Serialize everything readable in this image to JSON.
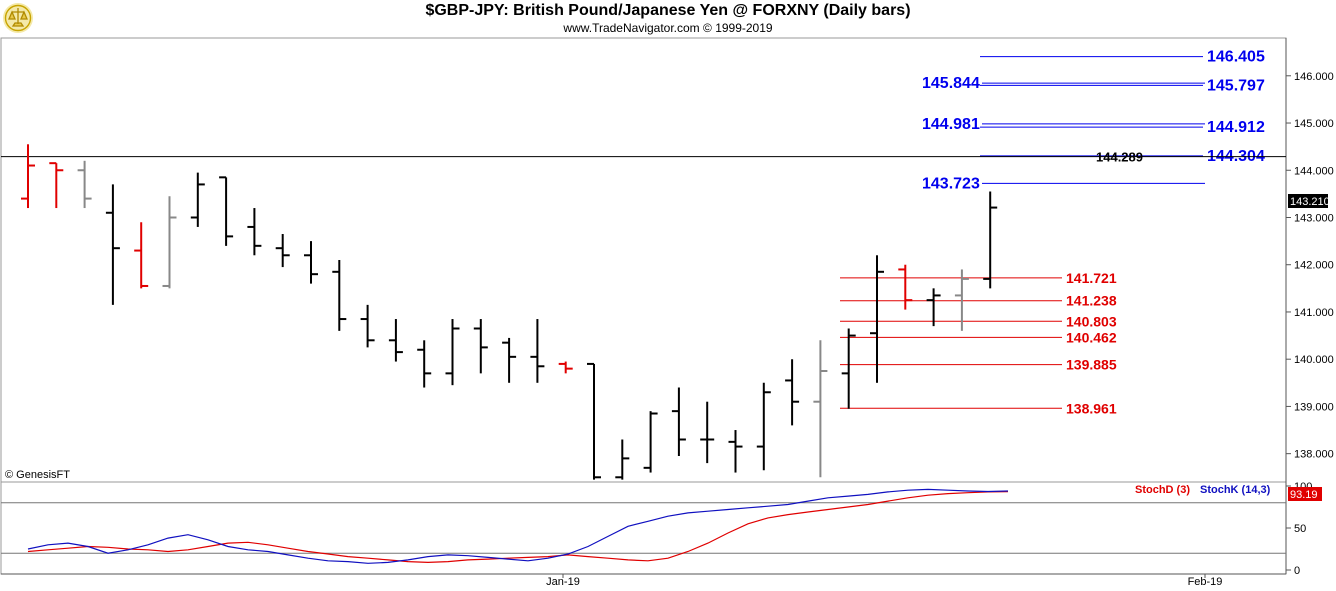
{
  "header": {
    "title": "$GBP-JPY:  British Pound/Japanese Yen @ FORXNY  (Daily bars)",
    "subtitle": "www.TradeNavigator.com © 1999-2019"
  },
  "copyright": "© GenesisFT",
  "colors": {
    "up": "#000000",
    "down": "#e00000",
    "neutral": "#888888",
    "resistance": "#0000ee",
    "support": "#e00000",
    "stochD": "#e00000",
    "stochK": "#1010c0"
  },
  "chart_data": [
    {
      "type": "ohlc",
      "title": "$GBP-JPY:  British Pound/Japanese Yen @ FORXNY  (Daily bars)",
      "ylim": [
        137.4,
        146.8
      ],
      "y_ticks": [
        "138.000",
        "139.000",
        "140.000",
        "141.000",
        "142.000",
        "143.000",
        "144.000",
        "145.000",
        "146.000"
      ],
      "x_ticks": [
        "Jan-19",
        "Feb-19"
      ],
      "last_price": "143.210",
      "bars": [
        {
          "o": 143.4,
          "h": 144.55,
          "l": 143.2,
          "c": 144.1,
          "col": "down"
        },
        {
          "o": 144.15,
          "h": 144.15,
          "l": 143.2,
          "c": 144.0,
          "col": "down"
        },
        {
          "o": 144.0,
          "h": 144.2,
          "l": 143.2,
          "c": 143.4,
          "col": "neutral"
        },
        {
          "o": 143.1,
          "h": 143.7,
          "l": 141.15,
          "c": 142.35,
          "col": "up"
        },
        {
          "o": 142.3,
          "h": 142.9,
          "l": 141.5,
          "c": 141.55,
          "col": "down"
        },
        {
          "o": 141.55,
          "h": 143.45,
          "l": 141.5,
          "c": 143.0,
          "col": "neutral"
        },
        {
          "o": 143.0,
          "h": 143.95,
          "l": 142.8,
          "c": 143.7,
          "col": "up"
        },
        {
          "o": 143.85,
          "h": 143.85,
          "l": 142.4,
          "c": 142.6,
          "col": "up"
        },
        {
          "o": 142.8,
          "h": 143.2,
          "l": 142.2,
          "c": 142.4,
          "col": "up"
        },
        {
          "o": 142.35,
          "h": 142.65,
          "l": 141.95,
          "c": 142.2,
          "col": "up"
        },
        {
          "o": 142.2,
          "h": 142.5,
          "l": 141.6,
          "c": 141.8,
          "col": "up"
        },
        {
          "o": 141.85,
          "h": 142.1,
          "l": 140.6,
          "c": 140.85,
          "col": "up"
        },
        {
          "o": 140.85,
          "h": 141.15,
          "l": 140.25,
          "c": 140.4,
          "col": "up"
        },
        {
          "o": 140.4,
          "h": 140.85,
          "l": 139.95,
          "c": 140.15,
          "col": "up"
        },
        {
          "o": 140.2,
          "h": 140.4,
          "l": 139.4,
          "c": 139.7,
          "col": "up"
        },
        {
          "o": 139.7,
          "h": 140.85,
          "l": 139.45,
          "c": 140.65,
          "col": "up"
        },
        {
          "o": 140.65,
          "h": 140.85,
          "l": 139.7,
          "c": 140.25,
          "col": "up"
        },
        {
          "o": 140.35,
          "h": 140.45,
          "l": 139.5,
          "c": 140.05,
          "col": "up"
        },
        {
          "o": 140.05,
          "h": 140.85,
          "l": 139.5,
          "c": 139.85,
          "col": "up"
        },
        {
          "o": 139.9,
          "h": 139.95,
          "l": 139.7,
          "c": 139.8,
          "col": "down"
        },
        {
          "o": 139.9,
          "h": 139.9,
          "l": 137.45,
          "c": 137.5,
          "col": "up"
        },
        {
          "o": 137.5,
          "h": 138.3,
          "l": 137.45,
          "c": 137.9,
          "col": "up"
        },
        {
          "o": 137.7,
          "h": 138.9,
          "l": 137.6,
          "c": 138.85,
          "col": "up"
        },
        {
          "o": 138.9,
          "h": 139.4,
          "l": 137.95,
          "c": 138.3,
          "col": "up"
        },
        {
          "o": 138.3,
          "h": 139.1,
          "l": 137.8,
          "c": 138.3,
          "col": "up"
        },
        {
          "o": 138.25,
          "h": 138.5,
          "l": 137.6,
          "c": 138.15,
          "col": "up"
        },
        {
          "o": 138.15,
          "h": 139.5,
          "l": 137.65,
          "c": 139.3,
          "col": "up"
        },
        {
          "o": 139.55,
          "h": 140.0,
          "l": 138.6,
          "c": 139.1,
          "col": "up"
        },
        {
          "o": 139.1,
          "h": 140.4,
          "l": 137.5,
          "c": 139.75,
          "col": "neutral"
        },
        {
          "o": 139.7,
          "h": 140.65,
          "l": 138.95,
          "c": 140.5,
          "col": "up"
        },
        {
          "o": 140.55,
          "h": 142.2,
          "l": 139.5,
          "c": 141.85,
          "col": "up"
        },
        {
          "o": 141.9,
          "h": 142.0,
          "l": 141.05,
          "c": 141.25,
          "col": "down"
        },
        {
          "o": 141.25,
          "h": 141.5,
          "l": 140.7,
          "c": 141.35,
          "col": "up"
        },
        {
          "o": 141.35,
          "h": 141.9,
          "l": 140.6,
          "c": 141.7,
          "col": "neutral"
        },
        {
          "o": 141.7,
          "h": 143.55,
          "l": 141.5,
          "c": 143.21,
          "col": "up"
        }
      ],
      "lines": [
        {
          "value": "146.405",
          "label_right": "146.405",
          "label_left": "",
          "color": "resistance"
        },
        {
          "value": "145.844",
          "label_right": "",
          "label_left": "145.844",
          "color": "resistance"
        },
        {
          "value": "145.797",
          "label_right": "145.797",
          "label_left": "",
          "color": "resistance"
        },
        {
          "value": "144.981",
          "label_right": "",
          "label_left": "144.981",
          "color": "resistance"
        },
        {
          "value": "144.912",
          "label_right": "144.912",
          "label_left": "",
          "color": "resistance"
        },
        {
          "value": "144.304",
          "label_right": "144.304",
          "label_left": "",
          "color": "resistance"
        },
        {
          "value": "143.723",
          "label_right": "",
          "label_left": "143.723",
          "color": "resistance"
        },
        {
          "value": "141.721",
          "label_right": "141.721",
          "label_left": "",
          "color": "support"
        },
        {
          "value": "141.238",
          "label_right": "141.238",
          "label_left": "",
          "color": "support"
        },
        {
          "value": "140.803",
          "label_right": "140.803",
          "label_left": "",
          "color": "support"
        },
        {
          "value": "140.462",
          "label_right": "140.462",
          "label_left": "",
          "color": "support"
        },
        {
          "value": "139.885",
          "label_right": "139.885",
          "label_left": "",
          "color": "support"
        },
        {
          "value": "138.961",
          "label_right": "138.961",
          "label_left": "",
          "color": "support"
        }
      ],
      "horizontal_line": {
        "value": "144.289",
        "label": "144.289"
      }
    },
    {
      "type": "line",
      "ylim": [
        0,
        100
      ],
      "y_ticks": [
        "0",
        "50",
        "100"
      ],
      "reference_lines": [
        20,
        80
      ],
      "last_value": "93.19",
      "series": [
        {
          "name": "StochD (3)",
          "color": "stochD",
          "values": [
            22,
            24,
            26,
            28,
            27,
            25,
            24,
            22,
            24,
            28,
            32,
            33,
            30,
            26,
            22,
            19,
            16,
            14,
            12,
            10,
            9,
            10,
            12,
            13,
            14,
            15,
            16,
            18,
            16,
            14,
            12,
            11,
            14,
            22,
            32,
            44,
            55,
            62,
            66,
            69,
            72,
            75,
            78,
            82,
            86,
            89,
            91,
            92,
            93,
            93.19
          ]
        },
        {
          "name": "StochK (14,3)",
          "color": "stochK",
          "values": [
            25,
            30,
            32,
            28,
            20,
            24,
            30,
            38,
            42,
            36,
            28,
            24,
            22,
            18,
            14,
            11,
            10,
            8,
            9,
            12,
            16,
            18,
            17,
            15,
            13,
            11,
            14,
            19,
            28,
            40,
            52,
            58,
            64,
            68,
            70,
            72,
            74,
            76,
            78,
            82,
            86,
            88,
            90,
            93,
            95,
            96,
            95,
            94,
            93.5,
            94
          ]
        }
      ]
    }
  ]
}
